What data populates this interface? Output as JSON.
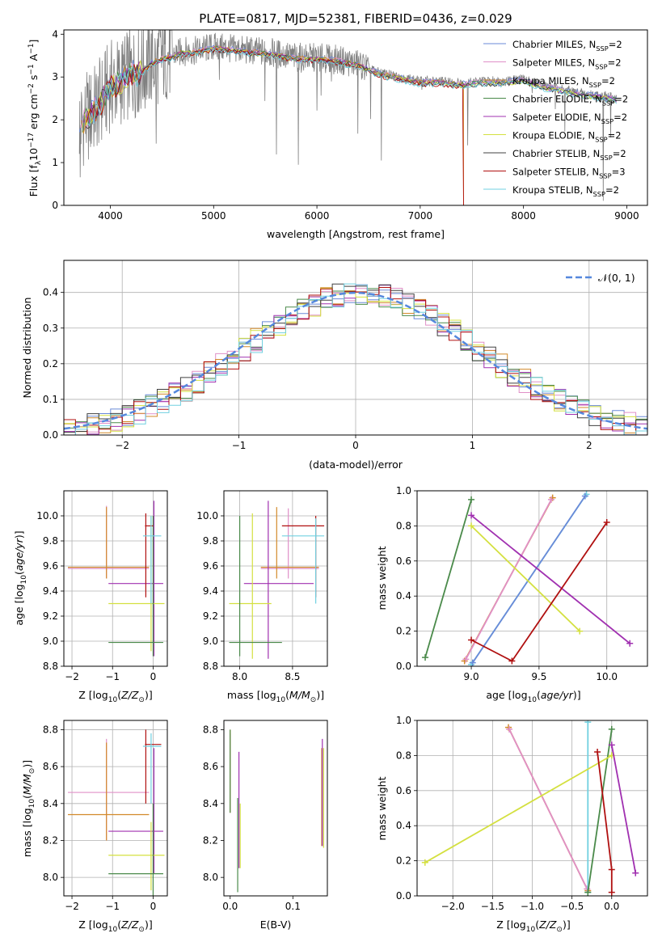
{
  "figure": {
    "title": "PLATE=0817, MJD=52381, FIBERID=0436, z=0.029"
  },
  "colors": {
    "Chabrier MILES": "#6a8ad8",
    "Salpeter MILES": "#e090c8",
    "Kroupa MILES": "#d28a2a",
    "Chabrier ELODIE": "#4a8a4a",
    "Salpeter ELODIE": "#a030b0",
    "Kroupa ELODIE": "#d4e040",
    "Chabrier STELIB": "#404040",
    "Salpeter STELIB": "#b01010",
    "Kroupa STELIB": "#70d0e0",
    "data": "#808080",
    "normal": "#5588dd"
  },
  "chart_data": [
    {
      "id": "spectrum",
      "type": "line",
      "xlabel": "wavelength [Angstrom, rest frame]",
      "ylabel": "Flux [f",
      "xlim": [
        3550,
        9200
      ],
      "ylim": [
        0,
        4.1
      ],
      "xticks": [
        4000,
        5000,
        6000,
        7000,
        8000,
        9000
      ],
      "yticks": [
        0,
        1,
        2,
        3,
        4
      ],
      "legend_position": "top-right",
      "legend": [
        {
          "name": "Chabrier MILES",
          "nssp": "2"
        },
        {
          "name": "Salpeter MILES",
          "nssp": "2"
        },
        {
          "name": "Kroupa MILES",
          "nssp": "2"
        },
        {
          "name": "Chabrier ELODIE",
          "nssp": "2"
        },
        {
          "name": "Salpeter ELODIE",
          "nssp": "2"
        },
        {
          "name": "Kroupa ELODIE",
          "nssp": "2"
        },
        {
          "name": "Chabrier STELIB",
          "nssp": "2"
        },
        {
          "name": "Salpeter STELIB",
          "nssp": "3"
        },
        {
          "name": "Kroupa STELIB",
          "nssp": "2"
        }
      ],
      "model_continuum": {
        "x": [
          3700,
          3800,
          3900,
          4000,
          4100,
          4200,
          4300,
          4400,
          4500,
          4600,
          4700,
          4800,
          5000,
          5200,
          5400,
          5600,
          5800,
          6000,
          6200,
          6400,
          6600,
          6800,
          7000,
          7200,
          7400,
          7600,
          7800,
          8000,
          8200,
          8400,
          8600,
          8800,
          8900
        ],
        "y": [
          1.9,
          2.1,
          2.4,
          2.8,
          2.9,
          3.1,
          3.15,
          3.35,
          3.45,
          3.5,
          3.6,
          3.6,
          3.7,
          3.65,
          3.6,
          3.55,
          3.45,
          3.45,
          3.4,
          3.3,
          3.1,
          3.0,
          2.9,
          2.9,
          2.85,
          2.9,
          2.9,
          2.95,
          2.8,
          2.7,
          2.6,
          2.55,
          2.5
        ]
      }
    },
    {
      "id": "residuals",
      "type": "step",
      "xlabel": "(data-model)/error",
      "ylabel": "Normed distribution",
      "xlim": [
        -2.5,
        2.5
      ],
      "ylim": [
        0,
        0.49
      ],
      "xticks": [
        -2,
        -1,
        0,
        1,
        2
      ],
      "yticks": [
        0.0,
        0.1,
        0.2,
        0.3,
        0.4
      ],
      "legend": "𝒩(0, 1)",
      "legend_position": "top-right",
      "grid": true,
      "bin_width": 0.1,
      "bins_center": [
        -2.45,
        -2.35,
        -2.25,
        -2.15,
        -2.05,
        -1.95,
        -1.85,
        -1.75,
        -1.65,
        -1.55,
        -1.45,
        -1.35,
        -1.25,
        -1.15,
        -1.05,
        -0.95,
        -0.85,
        -0.75,
        -0.65,
        -0.55,
        -0.45,
        -0.35,
        -0.25,
        -0.15,
        -0.05,
        0.05,
        0.15,
        0.25,
        0.35,
        0.45,
        0.55,
        0.65,
        0.75,
        0.85,
        0.95,
        1.05,
        1.15,
        1.25,
        1.35,
        1.45,
        1.55,
        1.65,
        1.75,
        1.85,
        1.95,
        2.05,
        2.15,
        2.25,
        2.35,
        2.45
      ]
    },
    {
      "id": "age_vs_Z",
      "type": "errorbar",
      "xlabel": "Z [log",
      "ylabel": "age  [log",
      "xlim": [
        -2.2,
        0.35
      ],
      "ylim": [
        8.8,
        10.2
      ],
      "xticks": [
        -2,
        -1,
        0
      ],
      "yticks": [
        8.8,
        9.0,
        9.2,
        9.4,
        9.6,
        9.8,
        10.0
      ],
      "grid": true
    },
    {
      "id": "age_vs_mass",
      "type": "errorbar",
      "xlabel": "mass [log",
      "xlim": [
        7.85,
        8.83
      ],
      "ylim": [
        8.8,
        10.2
      ],
      "xticks": [
        8.0,
        8.5
      ],
      "yticks": [
        8.8,
        9.0,
        9.2,
        9.4,
        9.6,
        9.8,
        10.0
      ],
      "grid": true
    },
    {
      "id": "weight_vs_age",
      "type": "line",
      "xlabel": "age  [log",
      "ylabel": "mass weight",
      "xlim": [
        8.6,
        10.3
      ],
      "ylim": [
        0,
        1
      ],
      "xticks": [
        9.0,
        9.5,
        10.0
      ],
      "yticks": [
        0.0,
        0.2,
        0.4,
        0.6,
        0.8,
        1.0
      ],
      "grid": true,
      "series": [
        {
          "color_key": "Chabrier ELODIE",
          "x": [
            8.66,
            9.0
          ],
          "y": [
            0.05,
            0.95
          ]
        },
        {
          "color_key": "Kroupa MILES",
          "x": [
            8.95,
            9.6
          ],
          "y": [
            0.03,
            0.96
          ]
        },
        {
          "color_key": "Salpeter MILES",
          "x": [
            8.96,
            9.59
          ],
          "y": [
            0.04,
            0.95
          ]
        },
        {
          "color_key": "Kroupa STELIB",
          "x": [
            9.0,
            9.85
          ],
          "y": [
            0.01,
            0.98
          ]
        },
        {
          "color_key": "Chabrier MILES",
          "x": [
            9.01,
            9.84
          ],
          "y": [
            0.02,
            0.97
          ]
        },
        {
          "color_key": "Kroupa ELODIE",
          "x": [
            9.0,
            9.8
          ],
          "y": [
            0.8,
            0.2
          ]
        },
        {
          "color_key": "Salpeter ELODIE",
          "x": [
            9.0,
            10.17
          ],
          "y": [
            0.86,
            0.13
          ]
        },
        {
          "color_key": "Salpeter STELIB",
          "x": [
            9.0,
            9.3,
            10.0
          ],
          "y": [
            0.15,
            0.03,
            0.82
          ]
        }
      ]
    },
    {
      "id": "mass_vs_Z",
      "type": "errorbar",
      "xlabel": "Z [log",
      "ylabel": "mass [log",
      "xlim": [
        -2.2,
        0.35
      ],
      "ylim": [
        7.9,
        8.85
      ],
      "xticks": [
        -2,
        -1,
        0
      ],
      "yticks": [
        8.0,
        8.2,
        8.4,
        8.6,
        8.8
      ],
      "grid": true
    },
    {
      "id": "mass_vs_EBV",
      "type": "errorbar",
      "xlabel": "E(B-V)",
      "xlim": [
        -0.01,
        0.155
      ],
      "ylim": [
        7.9,
        8.85
      ],
      "xticks": [
        0.0,
        0.1
      ],
      "yticks": [
        8.0,
        8.2,
        8.4,
        8.6,
        8.8
      ],
      "grid": false
    },
    {
      "id": "weight_vs_Z",
      "type": "line",
      "xlabel": "Z [log",
      "ylabel": "mass weight",
      "xlim": [
        -2.45,
        0.45
      ],
      "ylim": [
        0,
        1
      ],
      "xticks": [
        -2.0,
        -1.5,
        -1.0,
        -0.5,
        0.0
      ],
      "yticks": [
        0.0,
        0.2,
        0.4,
        0.6,
        0.8,
        1.0
      ],
      "grid": true,
      "series": [
        {
          "color_key": "Kroupa MILES",
          "x": [
            -1.3,
            -0.3
          ],
          "y": [
            0.96,
            0.03
          ]
        },
        {
          "color_key": "Salpeter MILES",
          "x": [
            -1.29,
            -0.31
          ],
          "y": [
            0.95,
            0.04
          ]
        },
        {
          "color_key": "Kroupa STELIB",
          "x": [
            -0.3,
            -0.3
          ],
          "y": [
            0.99,
            0.02
          ]
        },
        {
          "color_key": "Chabrier ELODIE",
          "x": [
            -0.3,
            0.0
          ],
          "y": [
            0.02,
            0.95
          ]
        },
        {
          "color_key": "Kroupa ELODIE",
          "x": [
            -2.35,
            0.0
          ],
          "y": [
            0.19,
            0.8
          ]
        },
        {
          "color_key": "Salpeter STELIB",
          "x": [
            -0.18,
            0.0,
            0.0
          ],
          "y": [
            0.82,
            0.15,
            0.02
          ]
        },
        {
          "color_key": "Salpeter ELODIE",
          "x": [
            0.0,
            0.3
          ],
          "y": [
            0.86,
            0.13
          ]
        }
      ]
    }
  ]
}
